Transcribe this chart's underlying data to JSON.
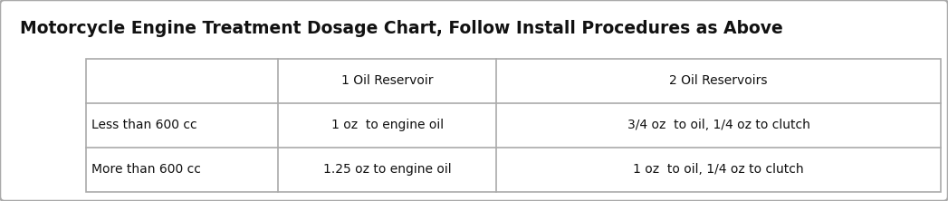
{
  "title": "Motorcycle Engine Treatment Dosage Chart, Follow Install Procedures as Above",
  "title_fontsize": 13.5,
  "title_fontweight": "bold",
  "background_color": "#ffffff",
  "outer_border_color": "#aaaaaa",
  "table_border_color": "#aaaaaa",
  "col_headers": [
    "",
    "1 Oil Reservoir",
    "2 Oil Reservoirs"
  ],
  "rows": [
    [
      "Less than 600 cc",
      "1 oz  to engine oil",
      "3/4 oz  to oil, 1/4 oz to clutch"
    ],
    [
      "More than 600 cc",
      "1.25 oz to engine oil",
      "1 oz  to oil, 1/4 oz to clutch"
    ]
  ],
  "header_fontsize": 10,
  "cell_fontsize": 10,
  "fig_width": 10.47,
  "fig_height": 2.22,
  "dpi": 100
}
